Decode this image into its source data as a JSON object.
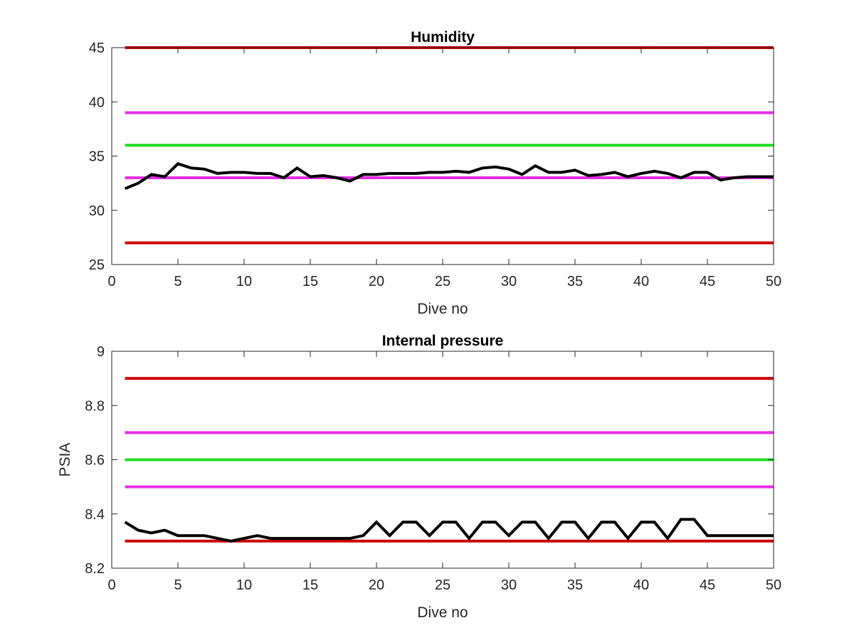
{
  "chart_data": [
    {
      "type": "line",
      "title": "Humidity",
      "xlabel": "Dive no",
      "ylabel": "",
      "xlim": [
        0,
        50
      ],
      "ylim": [
        25,
        45
      ],
      "xticks": [
        0,
        5,
        10,
        15,
        20,
        25,
        30,
        35,
        40,
        45,
        50
      ],
      "yticks": [
        25,
        30,
        35,
        40,
        45
      ],
      "reference_lines": [
        {
          "y": 45,
          "color": "#cc0000"
        },
        {
          "y": 39,
          "color": "#e62ee6"
        },
        {
          "y": 36,
          "color": "#22dd22"
        },
        {
          "y": 33,
          "color": "#e62ee6"
        },
        {
          "y": 27,
          "color": "#cc0000"
        }
      ],
      "series": [
        {
          "color": "#000000",
          "x": [
            1,
            2,
            3,
            4,
            5,
            6,
            7,
            8,
            9,
            10,
            11,
            12,
            13,
            14,
            15,
            16,
            17,
            18,
            19,
            20,
            21,
            22,
            23,
            24,
            25,
            26,
            27,
            28,
            29,
            30,
            31,
            32,
            33,
            34,
            35,
            36,
            37,
            38,
            39,
            40,
            41,
            42,
            43,
            44,
            45,
            46,
            47,
            48,
            49,
            50
          ],
          "y": [
            32.0,
            32.5,
            33.3,
            33.1,
            34.3,
            33.9,
            33.8,
            33.4,
            33.5,
            33.5,
            33.4,
            33.4,
            33.0,
            33.9,
            33.1,
            33.2,
            33.0,
            32.7,
            33.3,
            33.3,
            33.4,
            33.4,
            33.4,
            33.5,
            33.5,
            33.6,
            33.5,
            33.9,
            34.0,
            33.8,
            33.3,
            34.1,
            33.5,
            33.5,
            33.7,
            33.2,
            33.3,
            33.5,
            33.1,
            33.4,
            33.6,
            33.4,
            33.0,
            33.5,
            33.5,
            32.8,
            33.0,
            33.1,
            33.1,
            33.1
          ]
        }
      ]
    },
    {
      "type": "line",
      "title": "Internal pressure",
      "xlabel": "Dive no",
      "ylabel": "PSIA",
      "xlim": [
        0,
        50
      ],
      "ylim": [
        8.2,
        9.0
      ],
      "xticks": [
        0,
        5,
        10,
        15,
        20,
        25,
        30,
        35,
        40,
        45,
        50
      ],
      "yticks": [
        8.2,
        8.4,
        8.6,
        8.8,
        9.0
      ],
      "ytick_labels": [
        "8.2",
        "8.4",
        "8.6",
        "8.8",
        "9"
      ],
      "reference_lines": [
        {
          "y": 8.9,
          "color": "#cc0000"
        },
        {
          "y": 8.7,
          "color": "#e62ee6"
        },
        {
          "y": 8.6,
          "color": "#22dd22"
        },
        {
          "y": 8.5,
          "color": "#e62ee6"
        },
        {
          "y": 8.3,
          "color": "#cc0000"
        }
      ],
      "series": [
        {
          "color": "#000000",
          "x": [
            1,
            2,
            3,
            4,
            5,
            6,
            7,
            8,
            9,
            10,
            11,
            12,
            13,
            14,
            15,
            16,
            17,
            18,
            19,
            20,
            21,
            22,
            23,
            24,
            25,
            26,
            27,
            28,
            29,
            30,
            31,
            32,
            33,
            34,
            35,
            36,
            37,
            38,
            39,
            40,
            41,
            42,
            43,
            44,
            45,
            46,
            47,
            48,
            49,
            50
          ],
          "y": [
            8.37,
            8.34,
            8.33,
            8.34,
            8.32,
            8.32,
            8.32,
            8.31,
            8.3,
            8.31,
            8.32,
            8.31,
            8.31,
            8.31,
            8.31,
            8.31,
            8.31,
            8.31,
            8.32,
            8.37,
            8.32,
            8.37,
            8.37,
            8.32,
            8.37,
            8.37,
            8.31,
            8.37,
            8.37,
            8.32,
            8.37,
            8.37,
            8.31,
            8.37,
            8.37,
            8.31,
            8.37,
            8.37,
            8.31,
            8.37,
            8.37,
            8.31,
            8.38,
            8.38,
            8.32,
            8.32,
            8.32,
            8.32,
            8.32,
            8.32
          ]
        }
      ]
    }
  ]
}
